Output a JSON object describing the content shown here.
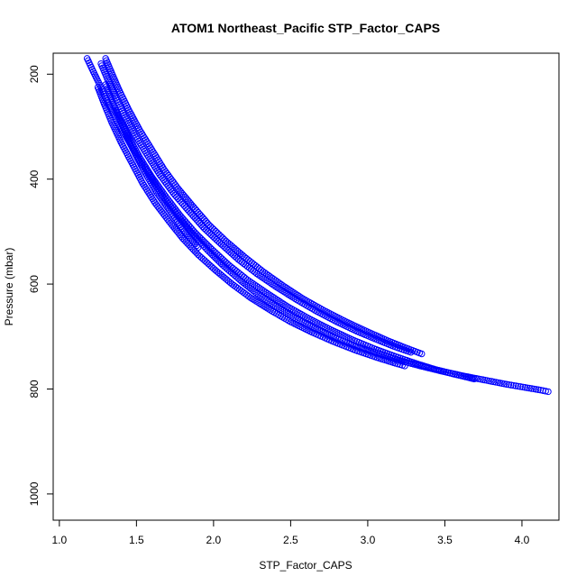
{
  "chart_data": {
    "type": "scatter",
    "title": "ATOM1 Northeast_Pacific STP_Factor_CAPS",
    "xlabel": "STP_Factor_CAPS",
    "ylabel": "Pressure (mbar)",
    "xlim": [
      0.96,
      4.24
    ],
    "ylim": [
      1050,
      160
    ],
    "y_reversed": true,
    "x_ticks": [
      1.0,
      1.5,
      2.0,
      2.5,
      3.0,
      3.5,
      4.0
    ],
    "x_tick_labels": [
      "1.0",
      "1.5",
      "2.0",
      "2.5",
      "3.0",
      "3.5",
      "4.0"
    ],
    "y_ticks": [
      200,
      400,
      600,
      800,
      1000
    ],
    "y_tick_labels": [
      "200",
      "400",
      "600",
      "800",
      "1000"
    ],
    "marker": "open-circle",
    "marker_color": "#0000ff",
    "grid": false,
    "series": [
      {
        "x": [
          1.18,
          1.22,
          1.27,
          1.32,
          1.38,
          1.45,
          1.52,
          1.6,
          1.68,
          1.77,
          1.86,
          1.96,
          2.06,
          2.17,
          2.28,
          2.4,
          2.52,
          2.65,
          2.78,
          2.92,
          3.06,
          3.2,
          3.34,
          3.48,
          3.62,
          3.76,
          3.9,
          4.02,
          4.12,
          4.17
        ],
        "y": [
          170,
          195,
          225,
          258,
          292,
          328,
          364,
          400,
          436,
          470,
          503,
          535,
          564,
          592,
          618,
          642,
          664,
          684,
          702,
          718,
          732,
          745,
          756,
          766,
          775,
          783,
          791,
          797,
          802,
          805
        ]
      },
      {
        "x": [
          1.3,
          1.34,
          1.39,
          1.45,
          1.52,
          1.6,
          1.68,
          1.77,
          1.87,
          1.97,
          2.08,
          2.2,
          2.32,
          2.45,
          2.58,
          2.72,
          2.86,
          3.0,
          3.13,
          3.25,
          3.35
        ],
        "y": [
          170,
          198,
          232,
          268,
          306,
          344,
          382,
          418,
          453,
          487,
          518,
          548,
          576,
          603,
          628,
          651,
          672,
          691,
          708,
          722,
          733
        ]
      },
      {
        "x": [
          1.27,
          1.31,
          1.36,
          1.42,
          1.49,
          1.57,
          1.65,
          1.74,
          1.84,
          1.94,
          2.05,
          2.16,
          2.28,
          2.41,
          2.54,
          2.67,
          2.8,
          2.93,
          3.06,
          3.18,
          3.28
        ],
        "y": [
          180,
          208,
          242,
          278,
          316,
          354,
          391,
          427,
          461,
          494,
          524,
          553,
          580,
          606,
          630,
          652,
          672,
          690,
          706,
          720,
          730
        ]
      },
      {
        "x": [
          1.3,
          1.34,
          1.39,
          1.45,
          1.52,
          1.6,
          1.69,
          1.78,
          1.88,
          1.99,
          2.1,
          2.22,
          2.35,
          2.48,
          2.62,
          2.76,
          2.9,
          3.04,
          3.18,
          3.31,
          3.43,
          3.55,
          3.65,
          3.69
        ],
        "y": [
          220,
          250,
          284,
          320,
          358,
          396,
          433,
          468,
          502,
          534,
          564,
          592,
          618,
          643,
          666,
          687,
          706,
          723,
          738,
          751,
          762,
          771,
          778,
          781
        ]
      },
      {
        "x": [
          1.25,
          1.29,
          1.34,
          1.4,
          1.47,
          1.54,
          1.62,
          1.71,
          1.8,
          1.9,
          2.01,
          2.12,
          2.24,
          2.37,
          2.5,
          2.64,
          2.78,
          2.92,
          3.06,
          3.18,
          3.24
        ],
        "y": [
          225,
          256,
          292,
          330,
          369,
          408,
          445,
          480,
          513,
          544,
          573,
          600,
          626,
          650,
          672,
          692,
          710,
          726,
          740,
          751,
          756
        ]
      },
      {
        "x": [
          1.37,
          1.42,
          1.48,
          1.55,
          1.63,
          1.72,
          1.81,
          1.9
        ],
        "y": [
          270,
          305,
          345,
          385,
          425,
          462,
          498,
          530
        ]
      }
    ]
  }
}
